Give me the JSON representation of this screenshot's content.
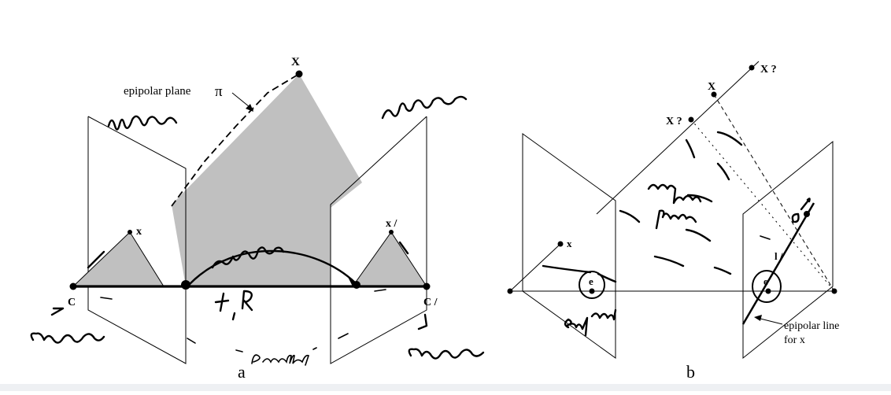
{
  "panel_a": {
    "caption": "a",
    "labels": {
      "point_X": "X",
      "epipolar_plane": "epipolar plane",
      "pi": "π",
      "x_left": "x",
      "x_right": "x /",
      "camera_left": "C",
      "camera_right": "C /"
    }
  },
  "panel_b": {
    "caption": "b",
    "labels": {
      "x_top": "X ?",
      "X": "X",
      "x_mid": "X ?",
      "x_point": "x",
      "e_left": "e",
      "e_right": "e",
      "l_prime": "l /",
      "epipolar_line": "epipolar line",
      "for_x": "for x"
    }
  },
  "colors": {
    "plane_fill": "#c0c0c0",
    "ink": "#000000",
    "bottom_bar": "#eef0f3"
  }
}
